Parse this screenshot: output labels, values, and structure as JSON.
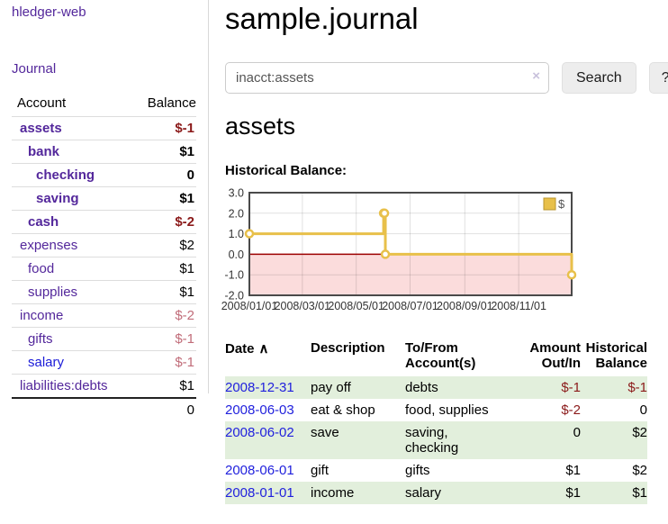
{
  "app": {
    "title": "hledger-web"
  },
  "icons": {
    "sort_asc": "∧",
    "clear": "×"
  },
  "sidebar": {
    "journal_link": "Journal",
    "table": {
      "col_account": "Account",
      "col_balance": "Balance",
      "accounts": [
        {
          "name": "assets",
          "balance": "$-1"
        },
        {
          "name": "bank",
          "balance": "$1"
        },
        {
          "name": "checking",
          "balance": "0"
        },
        {
          "name": "saving",
          "balance": "$1"
        },
        {
          "name": "cash",
          "balance": "$-2"
        },
        {
          "name": "expenses",
          "balance": "$2"
        },
        {
          "name": "food",
          "balance": "$1"
        },
        {
          "name": "supplies",
          "balance": "$1"
        },
        {
          "name": "income",
          "balance": "$-2"
        },
        {
          "name": "gifts",
          "balance": "$-1"
        },
        {
          "name": "salary",
          "balance": "$-1"
        },
        {
          "name": "liabilities:debts",
          "balance": "$1"
        }
      ],
      "total": "0"
    }
  },
  "header": {
    "title": "sample.journal"
  },
  "search": {
    "value": "inacct:assets",
    "button_label": "Search",
    "help_label": "?"
  },
  "account_page": {
    "heading": "assets",
    "chart_label": "Historical Balance:"
  },
  "chart_data": {
    "type": "line",
    "title": "Historical Balance",
    "legend": "$",
    "legend_position": "top-right",
    "step": true,
    "x_range": [
      "2008-01-01",
      "2008-12-31"
    ],
    "ylim": [
      -2,
      3
    ],
    "y_ticks": [
      3.0,
      2.0,
      1.0,
      0.0,
      -1.0,
      -2.0
    ],
    "x_ticks": [
      "2008/01/01",
      "2008/03/01",
      "2008/05/01",
      "2008/07/01",
      "2008/09/01",
      "2008/11/01"
    ],
    "series": [
      {
        "name": "$",
        "points": [
          [
            "2008-01-01",
            1
          ],
          [
            "2008-06-01",
            2
          ],
          [
            "2008-06-02",
            2
          ],
          [
            "2008-06-03",
            0
          ],
          [
            "2008-12-31",
            -1
          ]
        ]
      }
    ],
    "grid": true,
    "colors": {
      "line": "#e8c04a",
      "marker_fill": "#ffffff",
      "zero_line": "#9c0000",
      "negative_region": "#fbdcdc",
      "border": "#4a4a4a",
      "legend_swatch_border": "#b9952f"
    }
  },
  "transactions": {
    "columns": {
      "date": "Date",
      "description": "Description",
      "accounts": "To/From Account(s)",
      "amount": "Amount Out/In",
      "balance": "Historical Balance"
    },
    "rows": [
      {
        "date": "2008-12-31",
        "description": "pay off",
        "accounts": "debts",
        "amount": "$-1",
        "balance": "$-1"
      },
      {
        "date": "2008-06-03",
        "description": "eat & shop",
        "accounts": "food, supplies",
        "amount": "$-2",
        "balance": "0"
      },
      {
        "date": "2008-06-02",
        "description": "save",
        "accounts": "saving,\nchecking",
        "amount": "0",
        "balance": "$2"
      },
      {
        "date": "2008-06-01",
        "description": "gift",
        "accounts": "gifts",
        "amount": "$1",
        "balance": "$2"
      },
      {
        "date": "2008-01-01",
        "description": "income",
        "accounts": "salary",
        "amount": "$1",
        "balance": "$1"
      }
    ]
  }
}
